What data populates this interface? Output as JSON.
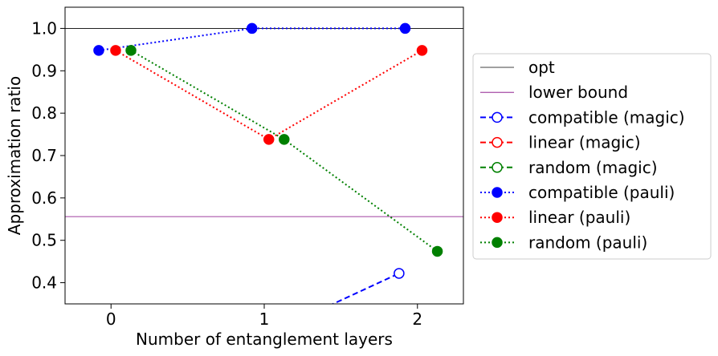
{
  "chart_data": {
    "type": "line",
    "title": "",
    "xlabel": "Number of entanglement layers",
    "ylabel": "Approximation ratio",
    "xlim": [
      -0.3,
      2.3
    ],
    "ylim": [
      0.35,
      1.05
    ],
    "x_ticks": [
      0,
      1,
      2
    ],
    "x_tick_labels": [
      "0",
      "1",
      "2"
    ],
    "y_ticks": [
      0.4,
      0.5,
      0.6,
      0.7,
      0.8,
      0.9,
      1.0
    ],
    "y_tick_labels": [
      "0.4",
      "0.5",
      "0.6",
      "0.7",
      "0.8",
      "0.9",
      "1.0"
    ],
    "grid": false,
    "legend_position": "right-outside",
    "reference_lines": [
      {
        "name": "opt",
        "y": 1.0,
        "color": "#000000"
      },
      {
        "name": "lower bound",
        "y": 0.556,
        "color": "#800080"
      }
    ],
    "series": [
      {
        "name": "compatible (magic)",
        "color": "#0000ff",
        "line": "dashed",
        "marker": "open",
        "x": [
          1.42,
          1.88
        ],
        "y": [
          0.345,
          0.422
        ]
      },
      {
        "name": "linear (magic)",
        "color": "#ff0000",
        "line": "dashed",
        "marker": "open",
        "x": [],
        "y": []
      },
      {
        "name": "random (magic)",
        "color": "#008000",
        "line": "dashed",
        "marker": "open",
        "x": [],
        "y": []
      },
      {
        "name": "compatible (pauli)",
        "color": "#0000ff",
        "line": "dotted",
        "marker": "filled",
        "x": [
          -0.08,
          0.92,
          1.92
        ],
        "y": [
          0.948,
          1.0,
          1.0
        ]
      },
      {
        "name": "linear (pauli)",
        "color": "#ff0000",
        "line": "dotted",
        "marker": "filled",
        "x": [
          0.03,
          1.03,
          2.03
        ],
        "y": [
          0.948,
          0.738,
          0.948
        ]
      },
      {
        "name": "random (pauli)",
        "color": "#008000",
        "line": "dotted",
        "marker": "filled",
        "x": [
          0.13,
          1.13,
          2.13
        ],
        "y": [
          0.948,
          0.738,
          0.474
        ]
      }
    ],
    "extra_markers": [
      {
        "series": "compatible (magic)",
        "x": 1.88,
        "y": 0.422,
        "visible": true
      }
    ]
  },
  "legend": {
    "items": [
      {
        "label": "opt",
        "kind": "line",
        "color": "#000000",
        "style": "solid"
      },
      {
        "label": "lower bound",
        "kind": "line",
        "color": "#800080",
        "style": "solid"
      },
      {
        "label": "compatible (magic)",
        "kind": "marker-line",
        "color": "#0000ff",
        "style": "dashed",
        "marker": "open"
      },
      {
        "label": "linear (magic)",
        "kind": "marker-line",
        "color": "#ff0000",
        "style": "dashed",
        "marker": "open"
      },
      {
        "label": "random (magic)",
        "kind": "marker-line",
        "color": "#008000",
        "style": "dashed",
        "marker": "open"
      },
      {
        "label": "compatible (pauli)",
        "kind": "marker-line",
        "color": "#0000ff",
        "style": "dotted",
        "marker": "filled"
      },
      {
        "label": "linear (pauli)",
        "kind": "marker-line",
        "color": "#ff0000",
        "style": "dotted",
        "marker": "filled"
      },
      {
        "label": "random (pauli)",
        "kind": "marker-line",
        "color": "#008000",
        "style": "dotted",
        "marker": "filled"
      }
    ]
  }
}
